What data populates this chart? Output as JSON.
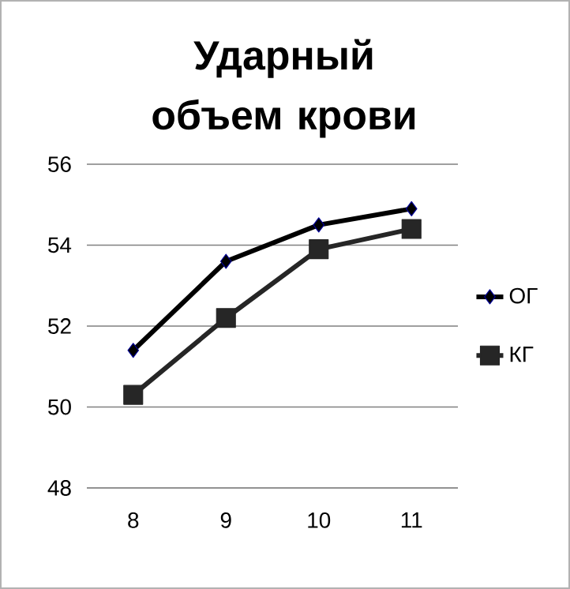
{
  "chart_data": {
    "type": "line",
    "title": "Ударный объем крови",
    "categories": [
      "8",
      "9",
      "10",
      "11"
    ],
    "series": [
      {
        "name": "ОГ",
        "color": "#000000",
        "marker": "diamond",
        "values": [
          51.4,
          53.6,
          54.5,
          54.9
        ]
      },
      {
        "name": "КГ",
        "color": "#262626",
        "marker": "square",
        "values": [
          50.3,
          52.2,
          53.9,
          54.4
        ]
      }
    ],
    "ylim": [
      48,
      56
    ],
    "yticks": [
      48,
      50,
      52,
      54,
      56
    ],
    "grid": "y",
    "legend": "right"
  }
}
